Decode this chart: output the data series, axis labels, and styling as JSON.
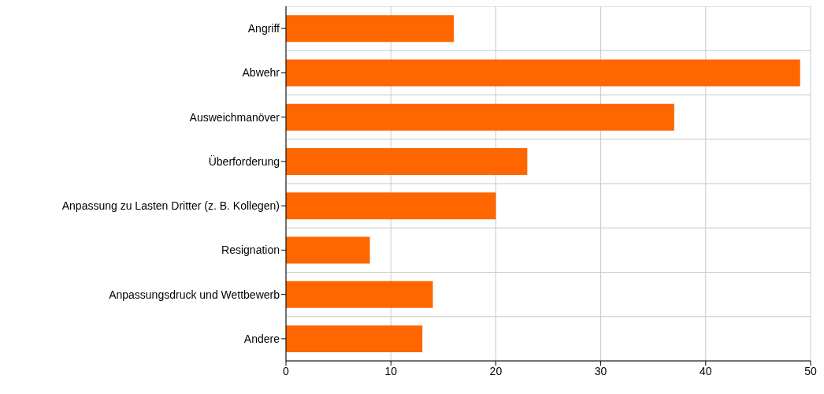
{
  "chart_data": {
    "type": "bar",
    "orientation": "horizontal",
    "categories": [
      "Angriff",
      "Abwehr",
      "Ausweichmanöver",
      "Überforderung",
      "Anpassung zu Lasten Dritter (z. B. Kollegen)",
      "Resignation",
      "Anpassungsdruck und Wettbewerb",
      "Andere"
    ],
    "values": [
      16,
      49,
      37,
      23,
      20,
      8,
      14,
      13
    ],
    "color": "#ff6600",
    "xlim": [
      0,
      50
    ],
    "xticks": [
      0,
      10,
      20,
      30,
      40,
      50
    ],
    "grid": true
  }
}
